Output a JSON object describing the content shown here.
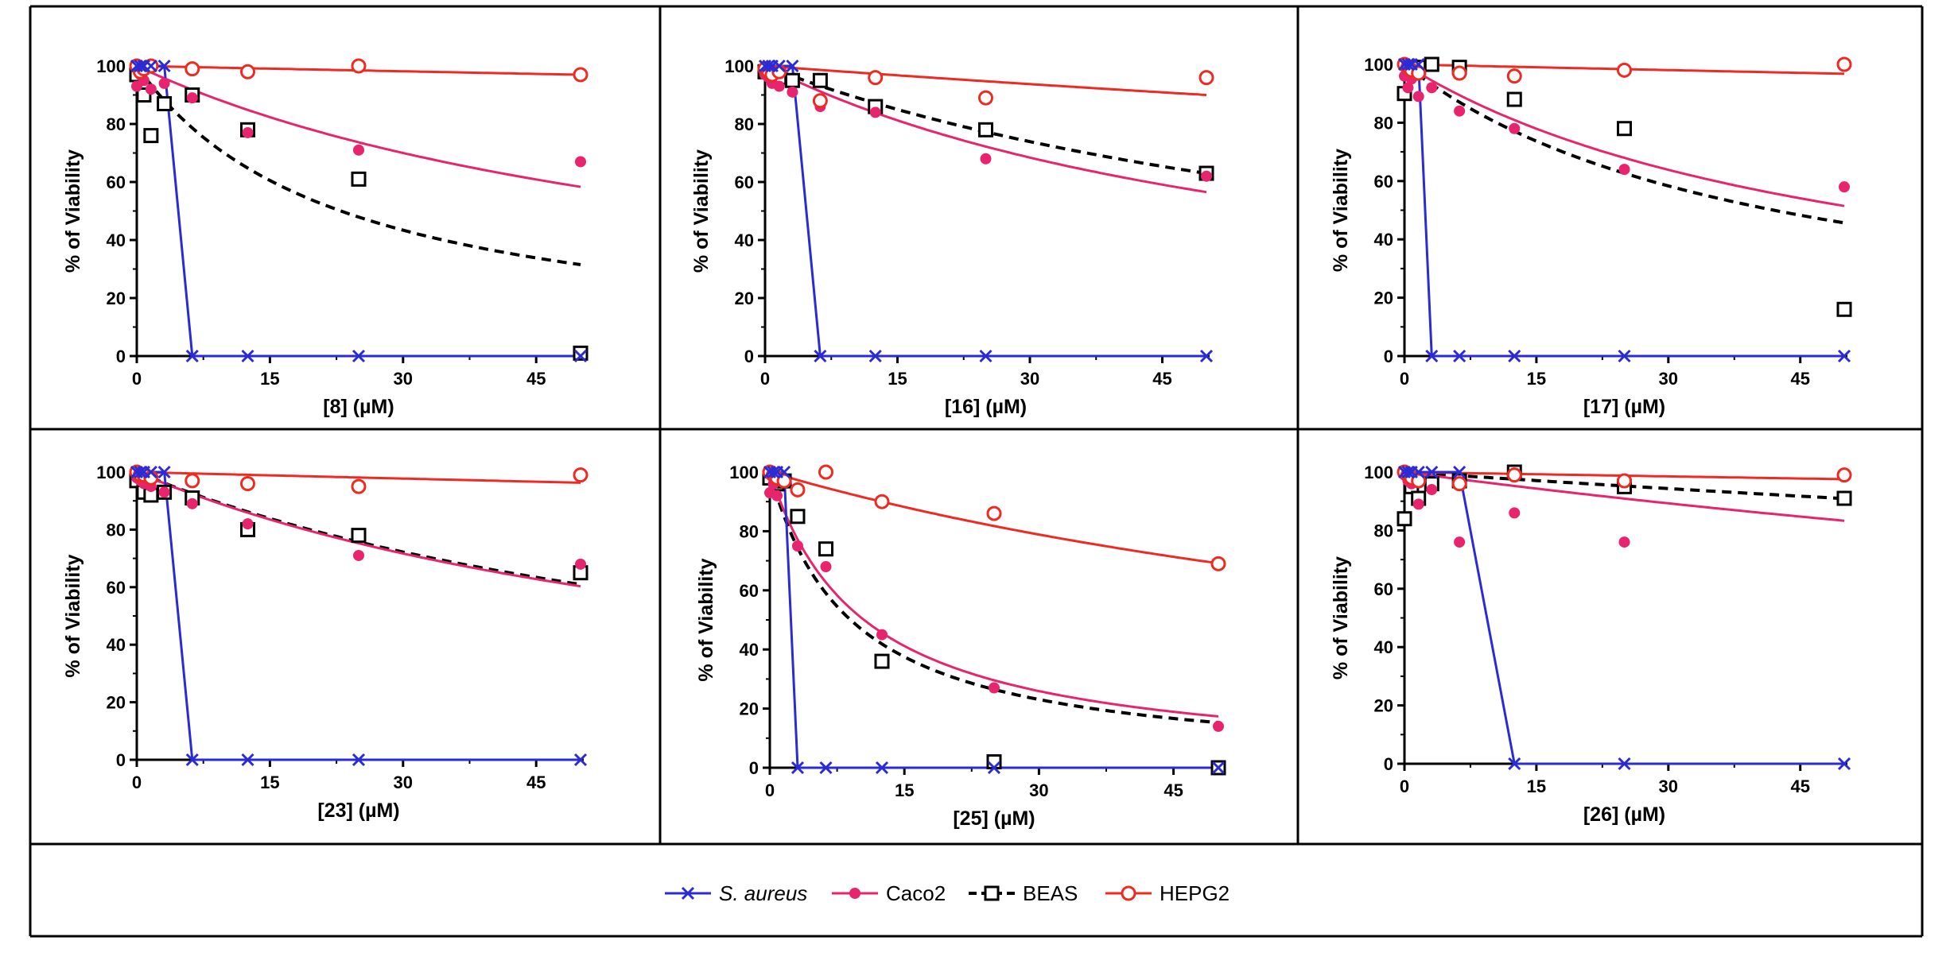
{
  "colors": {
    "saureus": "#2b2bd6",
    "caco2": "#e8246e",
    "beas": "#000000",
    "hepg2": "#ee2a22"
  },
  "legend": [
    {
      "key": "saureus",
      "label": "S. aureus",
      "marker": "x",
      "italic": true
    },
    {
      "key": "caco2",
      "label": "Caco2",
      "marker": "dot",
      "italic": false
    },
    {
      "key": "beas",
      "label": "BEAS",
      "marker": "square",
      "italic": false
    },
    {
      "key": "hepg2",
      "label": "HEPG2",
      "marker": "circle",
      "italic": false
    }
  ],
  "chart_data": [
    {
      "type": "scatter",
      "xlabel": "[8] (µM)",
      "ylabel": "% of Viability",
      "xlim": [
        0,
        50
      ],
      "ylim": [
        0,
        100
      ],
      "xticks": [
        "0",
        "15",
        "30",
        "45"
      ],
      "yticks": [
        "0",
        "20",
        "40",
        "60",
        "80",
        "100"
      ],
      "series": [
        {
          "name": "S. aureus",
          "x": [
            0,
            0.4,
            0.8,
            1.6,
            3.1,
            6.25,
            12.5,
            25,
            50
          ],
          "y": [
            100,
            100,
            100,
            100,
            100,
            0,
            0,
            0,
            0
          ],
          "curve_x": [
            0,
            3.1,
            6.25,
            12.5,
            25,
            50
          ],
          "curve_y": [
            100,
            100,
            0,
            0,
            0,
            0
          ]
        },
        {
          "name": "Caco2",
          "x": [
            0,
            0.4,
            0.8,
            1.6,
            3.1,
            6.25,
            12.5,
            25,
            50
          ],
          "y": [
            93,
            97,
            95,
            92,
            94,
            89,
            77,
            71,
            67
          ],
          "fit_ic50": 70
        },
        {
          "name": "BEAS",
          "x": [
            0,
            0.8,
            1.6,
            3.1,
            6.25,
            12.5,
            25,
            50
          ],
          "y": [
            97,
            90,
            76,
            87,
            90,
            78,
            61,
            1
          ],
          "fit_ic50": 23
        },
        {
          "name": "HEPG2",
          "x": [
            0,
            0.4,
            0.8,
            1.6,
            6.25,
            12.5,
            25,
            50
          ],
          "y": [
            100,
            98,
            99,
            100,
            99,
            98,
            100,
            97
          ],
          "fit_ic50": 1600
        }
      ]
    },
    {
      "type": "scatter",
      "xlabel": "[16] (µM)",
      "ylabel": "% of Viability",
      "xlim": [
        0,
        50
      ],
      "ylim": [
        0,
        100
      ],
      "xticks": [
        "0",
        "15",
        "30",
        "45"
      ],
      "yticks": [
        "0",
        "20",
        "40",
        "60",
        "80",
        "100"
      ],
      "series": [
        {
          "name": "S. aureus",
          "x": [
            0,
            0.4,
            0.8,
            1.6,
            3.1,
            6.25,
            12.5,
            25,
            50
          ],
          "y": [
            100,
            100,
            100,
            100,
            100,
            0,
            0,
            0,
            0
          ],
          "curve_x": [
            0,
            3.1,
            6.25,
            12.5,
            25,
            50
          ],
          "curve_y": [
            100,
            100,
            0,
            0,
            0,
            0
          ]
        },
        {
          "name": "Caco2",
          "x": [
            0,
            0.4,
            0.8,
            1.6,
            3.1,
            6.25,
            12.5,
            25,
            50
          ],
          "y": [
            97,
            96,
            94,
            93,
            91,
            86,
            84,
            68,
            62
          ],
          "fit_ic50": 65
        },
        {
          "name": "BEAS",
          "x": [
            0,
            0.8,
            1.6,
            3.1,
            6.25,
            12.5,
            25,
            50
          ],
          "y": [
            98,
            97,
            96,
            95,
            95,
            86,
            78,
            63
          ],
          "fit_ic50": 85
        },
        {
          "name": "HEPG2",
          "x": [
            0,
            0.4,
            0.8,
            1.6,
            6.25,
            12.5,
            25,
            50
          ],
          "y": [
            99,
            98,
            97,
            98,
            88,
            96,
            89,
            96
          ],
          "fit_ic50": 450
        }
      ]
    },
    {
      "type": "scatter",
      "xlabel": "[17] (µM)",
      "ylabel": "% of Viability",
      "xlim": [
        0,
        50
      ],
      "ylim": [
        0,
        100
      ],
      "xticks": [
        "0",
        "15",
        "30",
        "45"
      ],
      "yticks": [
        "0",
        "20",
        "40",
        "60",
        "80",
        "100"
      ],
      "series": [
        {
          "name": "S. aureus",
          "x": [
            0,
            0.4,
            0.8,
            1.6,
            3.1,
            6.25,
            12.5,
            25,
            50
          ],
          "y": [
            100,
            100,
            100,
            100,
            0,
            0,
            0,
            0,
            0
          ],
          "curve_x": [
            0,
            1.6,
            3.1,
            6.25,
            12.5,
            25,
            50
          ],
          "curve_y": [
            100,
            100,
            0,
            0,
            0,
            0,
            0
          ]
        },
        {
          "name": "Caco2",
          "x": [
            0,
            0.4,
            0.8,
            1.6,
            3.1,
            6.25,
            12.5,
            25,
            50
          ],
          "y": [
            96,
            92,
            95,
            89,
            92,
            84,
            78,
            64,
            58
          ],
          "fit_ic50": 53
        },
        {
          "name": "BEAS",
          "x": [
            0,
            0.8,
            1.6,
            3.1,
            6.25,
            12.5,
            25,
            50
          ],
          "y": [
            90,
            97,
            99,
            100,
            99,
            88,
            78,
            16
          ],
          "fit_ic50": 42
        },
        {
          "name": "HEPG2",
          "x": [
            0,
            0.4,
            0.8,
            1.6,
            6.25,
            12.5,
            25,
            50
          ],
          "y": [
            100,
            99,
            98,
            97,
            97,
            96,
            98,
            100
          ],
          "fit_ic50": 1500
        }
      ]
    },
    {
      "type": "scatter",
      "xlabel": "[23] (µM)",
      "ylabel": "% of Viability",
      "xlim": [
        0,
        50
      ],
      "ylim": [
        0,
        100
      ],
      "xticks": [
        "0",
        "15",
        "30",
        "45"
      ],
      "yticks": [
        "0",
        "20",
        "40",
        "60",
        "80",
        "100"
      ],
      "series": [
        {
          "name": "S. aureus",
          "x": [
            0,
            0.4,
            0.8,
            1.6,
            3.1,
            6.25,
            12.5,
            25,
            50
          ],
          "y": [
            100,
            100,
            100,
            100,
            100,
            0,
            0,
            0,
            0
          ],
          "curve_x": [
            0,
            3.1,
            6.25,
            12.5,
            25,
            50
          ],
          "curve_y": [
            100,
            100,
            0,
            0,
            0,
            0
          ]
        },
        {
          "name": "Caco2",
          "x": [
            0,
            0.4,
            0.8,
            1.6,
            3.1,
            6.25,
            12.5,
            25,
            50
          ],
          "y": [
            98,
            97,
            96,
            95,
            93,
            89,
            82,
            71,
            68
          ],
          "fit_ic50": 76
        },
        {
          "name": "BEAS",
          "x": [
            0,
            0.8,
            1.6,
            3.1,
            6.25,
            12.5,
            25,
            50
          ],
          "y": [
            97,
            93,
            92,
            93,
            91,
            80,
            78,
            65
          ],
          "fit_ic50": 78
        },
        {
          "name": "HEPG2",
          "x": [
            0,
            0.4,
            0.8,
            1.6,
            6.25,
            12.5,
            25,
            50
          ],
          "y": [
            100,
            99,
            99,
            98,
            97,
            96,
            95,
            99
          ],
          "fit_ic50": 1300
        }
      ]
    },
    {
      "type": "scatter",
      "xlabel": "[25] (µM)",
      "ylabel": "% of Viability",
      "xlim": [
        0,
        50
      ],
      "ylim": [
        0,
        100
      ],
      "xticks": [
        "0",
        "15",
        "30",
        "45"
      ],
      "yticks": [
        "0",
        "20",
        "40",
        "60",
        "80",
        "100"
      ],
      "series": [
        {
          "name": "S. aureus",
          "x": [
            0,
            0.4,
            0.8,
            1.6,
            3.1,
            6.25,
            12.5,
            25,
            50
          ],
          "y": [
            100,
            100,
            100,
            100,
            0,
            0,
            0,
            0,
            0
          ],
          "curve_x": [
            0,
            1.6,
            3.1,
            6.25,
            12.5,
            25,
            50
          ],
          "curve_y": [
            100,
            100,
            0,
            0,
            0,
            0,
            0
          ]
        },
        {
          "name": "Caco2",
          "x": [
            0,
            0.4,
            0.8,
            1.6,
            3.1,
            6.25,
            12.5,
            25,
            50
          ],
          "y": [
            93,
            96,
            92,
            97,
            75,
            68,
            45,
            27,
            14
          ],
          "fit_ic50": 10.5
        },
        {
          "name": "BEAS",
          "x": [
            0,
            0.8,
            1.6,
            3.1,
            6.25,
            12.5,
            25,
            50
          ],
          "y": [
            98,
            96,
            97,
            85,
            74,
            36,
            2,
            0
          ],
          "fit_ic50": 9
        },
        {
          "name": "HEPG2",
          "x": [
            0,
            0.4,
            0.8,
            1.6,
            3.1,
            6.25,
            12.5,
            25,
            50
          ],
          "y": [
            100,
            99,
            98,
            97,
            94,
            100,
            90,
            86,
            69
          ],
          "fit_ic50": 112
        }
      ]
    },
    {
      "type": "scatter",
      "xlabel": "[26] (µM)",
      "ylabel": "% of Viability",
      "xlim": [
        0,
        50
      ],
      "ylim": [
        0,
        100
      ],
      "xticks": [
        "0",
        "15",
        "30",
        "45"
      ],
      "yticks": [
        "0",
        "20",
        "40",
        "60",
        "80",
        "100"
      ],
      "series": [
        {
          "name": "S. aureus",
          "x": [
            0,
            0.4,
            0.8,
            1.6,
            3.1,
            6.25,
            12.5,
            25,
            50
          ],
          "y": [
            100,
            100,
            100,
            100,
            100,
            100,
            0,
            0,
            0
          ],
          "curve_x": [
            0,
            6.25,
            12.5,
            25,
            50
          ],
          "curve_y": [
            100,
            100,
            0,
            0,
            0
          ]
        },
        {
          "name": "Caco2",
          "x": [
            0,
            0.4,
            0.8,
            1.6,
            3.1,
            6.25,
            12.5,
            25,
            50
          ],
          "y": [
            99,
            97,
            96,
            89,
            94,
            76,
            86,
            76,
            99
          ],
          "fit_ic50": 250
        },
        {
          "name": "BEAS",
          "x": [
            0,
            0.8,
            1.6,
            3.1,
            6.25,
            12.5,
            25,
            50
          ],
          "y": [
            84,
            95,
            91,
            96,
            97,
            100,
            95,
            91
          ],
          "fit_ic50": 500
        },
        {
          "name": "HEPG2",
          "x": [
            0,
            0.4,
            0.8,
            1.6,
            6.25,
            12.5,
            25,
            50
          ],
          "y": [
            100,
            99,
            98,
            97,
            96,
            99,
            97,
            99
          ],
          "fit_ic50": 2000
        }
      ]
    }
  ]
}
